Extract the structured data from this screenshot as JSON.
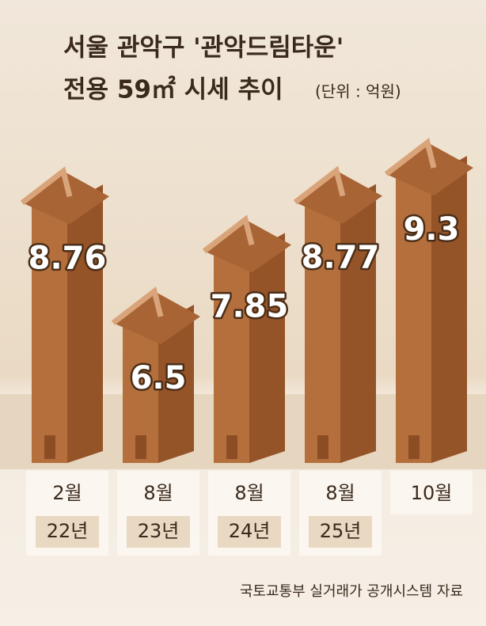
{
  "chart_data": {
    "type": "bar",
    "title": "서울 관악구 '관악드림타운'",
    "subtitle": "전용 59㎡ 시세 추이",
    "unit_note": "(단위 : 억원)",
    "categories": [
      "2월",
      "8월",
      "8월",
      "8월",
      "10월"
    ],
    "years": [
      "22년",
      "23년",
      "24년",
      "25년",
      null
    ],
    "values": [
      8.76,
      6.5,
      7.85,
      8.77,
      9.3
    ],
    "color": "#b46f3c",
    "source": "국토교통부 실거래가 공개시스템 자료"
  }
}
